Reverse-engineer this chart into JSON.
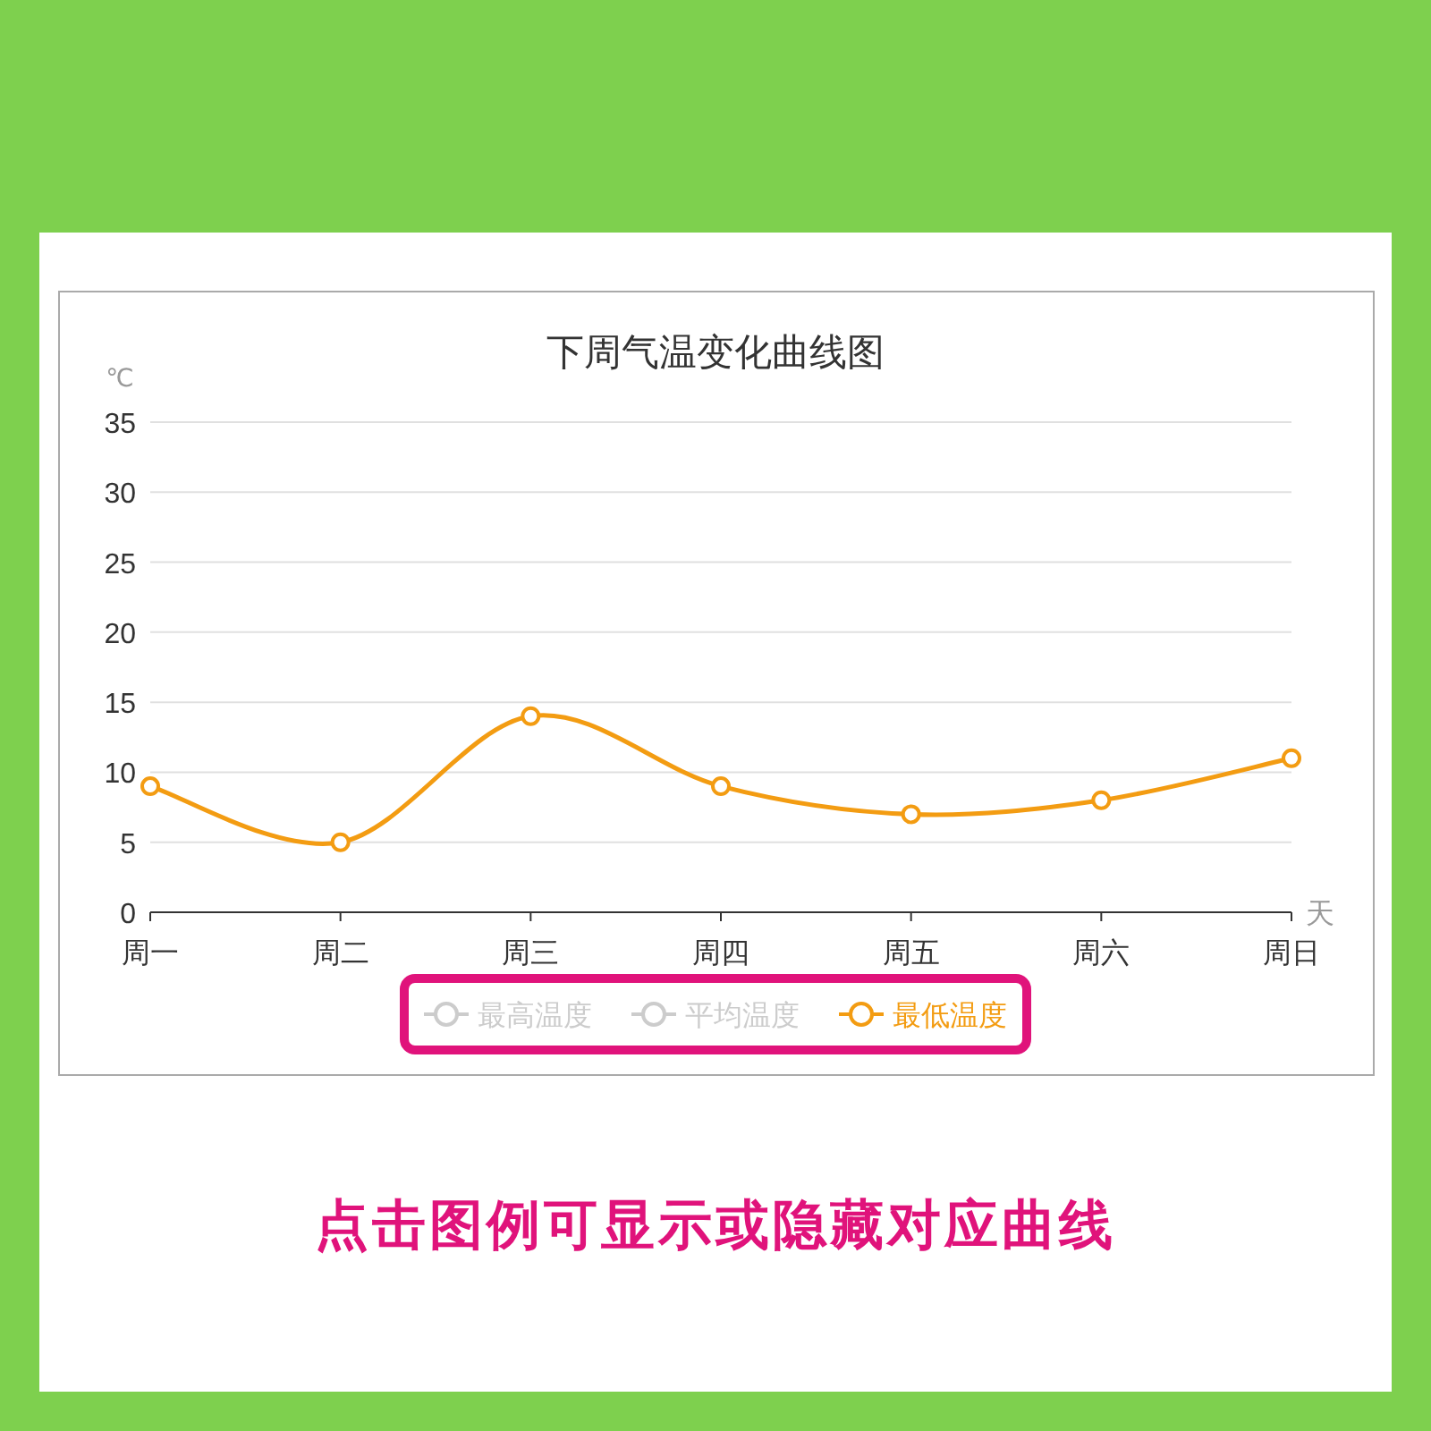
{
  "chart_data": {
    "type": "line",
    "title": "下周气温变化曲线图",
    "ylabel": "℃",
    "xlabel": "天",
    "categories": [
      "周一",
      "周二",
      "周三",
      "周四",
      "周五",
      "周六",
      "周日"
    ],
    "series": [
      {
        "name": "最高温度",
        "color": "#cccccc",
        "values": [
          null,
          null,
          null,
          null,
          null,
          null,
          null
        ]
      },
      {
        "name": "平均温度",
        "color": "#cccccc",
        "values": [
          null,
          null,
          null,
          null,
          null,
          null,
          null
        ]
      },
      {
        "name": "最低温度",
        "color": "#f39c12",
        "values": [
          9,
          5,
          14,
          9,
          7,
          8,
          11
        ]
      }
    ],
    "ylim": [
      0,
      35
    ],
    "yticks": [
      0,
      5,
      10,
      15,
      20,
      25,
      30,
      35
    ],
    "grid": "y",
    "legend": "bottom",
    "marker": "circle",
    "annotations": [
      "点击图例可显示或隐藏对应曲线"
    ]
  }
}
